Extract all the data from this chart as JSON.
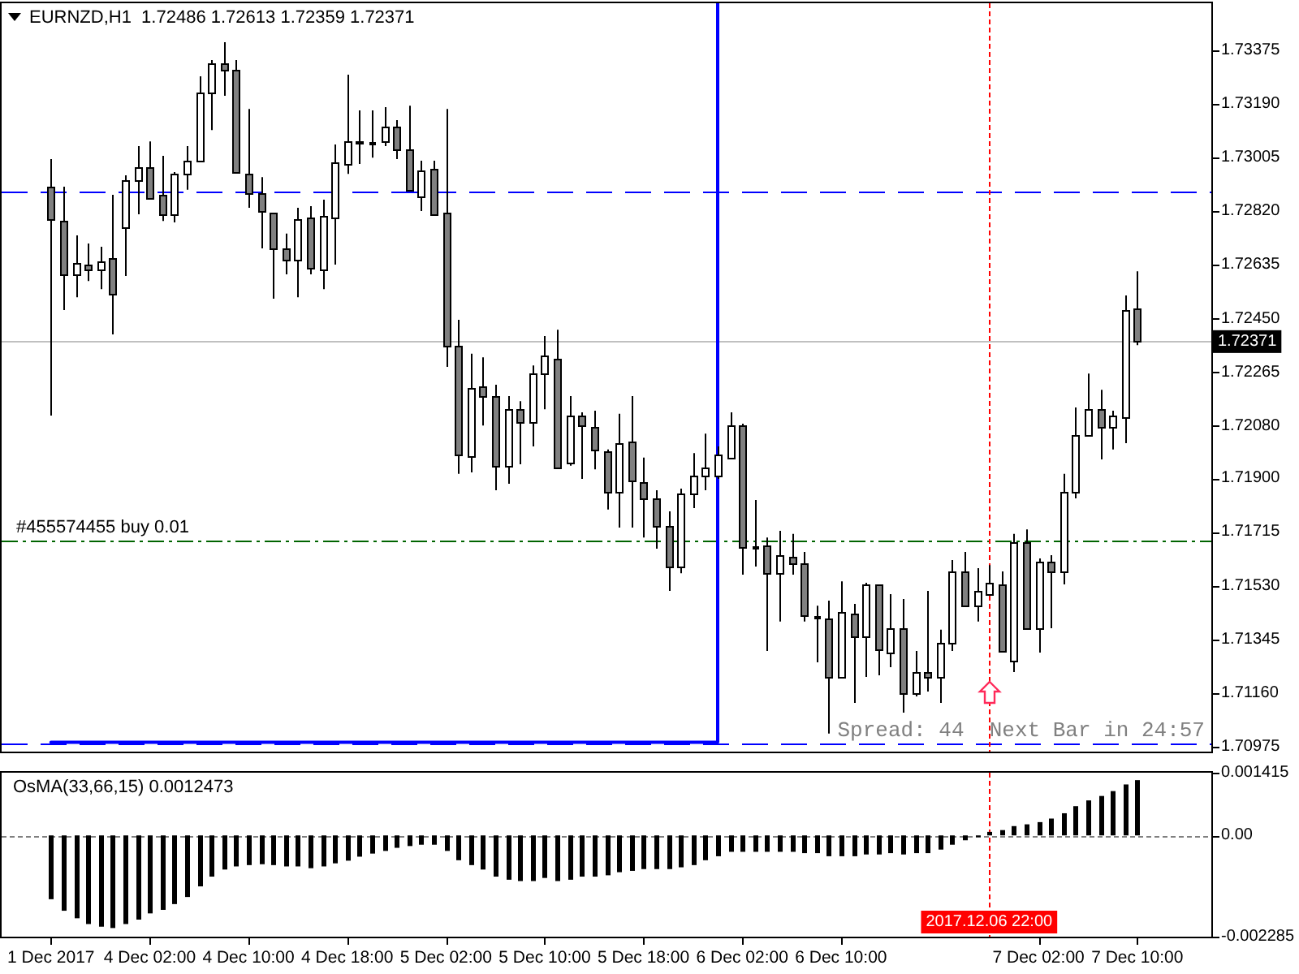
{
  "chart_data": [
    {
      "type": "candlestick",
      "title": "EURNZD,H1  1.72486 1.72613 1.72359 1.72371",
      "categories": [
        "1 Dec 2017",
        null,
        null,
        null,
        null,
        null,
        null,
        null,
        "4 Dec 02:00",
        null,
        null,
        null,
        null,
        null,
        null,
        null,
        "4 Dec 10:00",
        null,
        null,
        null,
        null,
        null,
        null,
        null,
        "4 Dec 18:00",
        null,
        null,
        null,
        null,
        null,
        null,
        null,
        "5 Dec 02:00",
        null,
        null,
        null,
        null,
        null,
        null,
        null,
        "5 Dec 10:00",
        null,
        null,
        null,
        null,
        null,
        null,
        null,
        "5 Dec 18:00",
        null,
        null,
        null,
        null,
        null,
        null,
        null,
        "6 Dec 02:00",
        null,
        null,
        null,
        null,
        null,
        null,
        null,
        "6 Dec 10:00",
        null,
        null,
        null,
        null,
        null,
        null,
        null,
        null,
        null,
        null,
        null,
        "2017.12.06 22:00",
        null,
        null,
        null,
        "7 Dec 02:00",
        null,
        null,
        null,
        null,
        null,
        null,
        null,
        "7 Dec 10:00"
      ],
      "ohlc": [
        [
          1.72905,
          1.73,
          1.72116,
          1.72793
        ],
        [
          1.72787,
          1.72905,
          1.7248,
          1.72603
        ],
        [
          1.72603,
          1.72737,
          1.72524,
          1.72642
        ],
        [
          1.72636,
          1.72709,
          1.7258,
          1.72619
        ],
        [
          1.72619,
          1.72698,
          1.72552,
          1.72647
        ],
        [
          1.72659,
          1.72877,
          1.72396,
          1.72536
        ],
        [
          1.72765,
          1.72944,
          1.72597,
          1.72927
        ],
        [
          1.72927,
          1.73045,
          1.7281,
          1.72972
        ],
        [
          1.72972,
          1.73061,
          1.72866,
          1.72866
        ],
        [
          1.72877,
          1.73011,
          1.72787,
          1.7281
        ],
        [
          1.7281,
          1.72955,
          1.72782,
          1.72949
        ],
        [
          1.72949,
          1.73045,
          1.72894,
          1.72994
        ],
        [
          1.72994,
          1.73285,
          1.72989,
          1.73229
        ],
        [
          1.73229,
          1.73341,
          1.731,
          1.7333
        ],
        [
          1.7333,
          1.73403,
          1.73218,
          1.73307
        ],
        [
          1.73307,
          1.73341,
          1.72955,
          1.72955
        ],
        [
          1.72949,
          1.73173,
          1.72832,
          1.72882
        ],
        [
          1.72882,
          1.72938,
          1.72692,
          1.72821
        ],
        [
          1.72815,
          1.72815,
          1.72519,
          1.72692
        ],
        [
          1.72692,
          1.72743,
          1.72603,
          1.72653
        ],
        [
          1.72653,
          1.72832,
          1.72524,
          1.72793
        ],
        [
          1.72798,
          1.72838,
          1.72603,
          1.72625
        ],
        [
          1.72619,
          1.7286,
          1.72552,
          1.72804
        ],
        [
          1.72798,
          1.7305,
          1.72636,
          1.72989
        ],
        [
          1.72983,
          1.73291,
          1.72949,
          1.73061
        ],
        [
          1.73056,
          1.73168,
          1.72983,
          1.73061
        ],
        [
          1.73056,
          1.73168,
          1.73005,
          1.73056
        ],
        [
          1.73061,
          1.73179,
          1.73045,
          1.73112
        ],
        [
          1.73112,
          1.73134,
          1.73,
          1.73033
        ],
        [
          1.73033,
          1.73184,
          1.72894,
          1.72894
        ],
        [
          1.72871,
          1.72994,
          1.72821,
          1.72961
        ],
        [
          1.72966,
          1.72994,
          1.7281,
          1.7281
        ],
        [
          1.72815,
          1.73173,
          1.72284,
          1.72357
        ],
        [
          1.72357,
          1.72446,
          1.71915,
          1.71982
        ],
        [
          1.71976,
          1.72329,
          1.7192,
          1.72211
        ],
        [
          1.72217,
          1.72317,
          1.72082,
          1.72183
        ],
        [
          1.72183,
          1.72222,
          1.71859,
          1.71943
        ],
        [
          1.71943,
          1.72183,
          1.71881,
          1.72138
        ],
        [
          1.72138,
          1.72166,
          1.71948,
          1.72094
        ],
        [
          1.72094,
          1.72289,
          1.7201,
          1.72261
        ],
        [
          1.72261,
          1.7239,
          1.72138,
          1.72323
        ],
        [
          1.72312,
          1.72412,
          1.71937,
          1.71937
        ],
        [
          1.71954,
          1.72183,
          1.71943,
          1.72116
        ],
        [
          1.72116,
          1.72127,
          1.71898,
          1.72082
        ],
        [
          1.72077,
          1.72133,
          1.71931,
          1.71999
        ],
        [
          1.71993,
          1.71999,
          1.71792,
          1.71853
        ],
        [
          1.71853,
          1.72122,
          1.7173,
          1.72021
        ],
        [
          1.72026,
          1.72183,
          1.7173,
          1.71892
        ],
        [
          1.71887,
          1.71971,
          1.71696,
          1.71831
        ],
        [
          1.71831,
          1.71859,
          1.71657,
          1.71736
        ],
        [
          1.71736,
          1.71786,
          1.71512,
          1.71596
        ],
        [
          1.71596,
          1.71864,
          1.71573,
          1.71847
        ],
        [
          1.71847,
          1.71987,
          1.71797,
          1.71909
        ],
        [
          1.71909,
          1.72054,
          1.71859,
          1.71937
        ],
        [
          1.71909,
          1.7201,
          1.71898,
          1.71982
        ],
        [
          1.71971,
          1.72127,
          1.71971,
          1.72082
        ],
        [
          1.72082,
          1.72088,
          1.71568,
          1.71663
        ],
        [
          1.71663,
          1.71825,
          1.71596,
          1.71663
        ],
        [
          1.71668,
          1.71696,
          1.71305,
          1.71573
        ],
        [
          1.71573,
          1.71719,
          1.71406,
          1.71635
        ],
        [
          1.71629,
          1.71708,
          1.71568,
          1.71607
        ],
        [
          1.71607,
          1.71646,
          1.71406,
          1.71428
        ],
        [
          1.71422,
          1.71461,
          1.71266,
          1.71422
        ],
        [
          1.71417,
          1.71478,
          1.7102,
          1.71215
        ],
        [
          1.71215,
          1.71545,
          1.7121,
          1.71439
        ],
        [
          1.71434,
          1.71467,
          1.71126,
          1.71355
        ],
        [
          1.71355,
          1.7154,
          1.71215,
          1.71534
        ],
        [
          1.71534,
          1.71534,
          1.71221,
          1.7131
        ],
        [
          1.71299,
          1.71501,
          1.71249,
          1.71383
        ],
        [
          1.71383,
          1.71484,
          1.71092,
          1.71159
        ],
        [
          1.71159,
          1.71305,
          1.71148,
          1.71232
        ],
        [
          1.71232,
          1.71512,
          1.71165,
          1.71215
        ],
        [
          1.71215,
          1.71378,
          1.71126,
          1.71333
        ],
        [
          1.71333,
          1.71618,
          1.71305,
          1.71579
        ],
        [
          1.71579,
          1.71646,
          1.71456,
          1.71461
        ],
        [
          1.71461,
          1.7159,
          1.71406,
          1.71512
        ],
        [
          1.71501,
          1.71601,
          1.71495,
          1.7154
        ],
        [
          1.71534,
          1.71579,
          1.71305,
          1.71305
        ],
        [
          1.71271,
          1.71708,
          1.71232,
          1.7168
        ],
        [
          1.7168,
          1.71724,
          1.71378,
          1.71383
        ],
        [
          1.71383,
          1.71624,
          1.71299,
          1.71613
        ],
        [
          1.71613,
          1.71635,
          1.71383,
          1.71579
        ],
        [
          1.71579,
          1.71915,
          1.71534,
          1.71853
        ],
        [
          1.71853,
          1.72144,
          1.71831,
          1.72049
        ],
        [
          1.72049,
          1.72261,
          1.72049,
          1.72138
        ],
        [
          1.72138,
          1.72205,
          1.71965,
          1.72077
        ],
        [
          1.72077,
          1.72133,
          1.71999,
          1.72116
        ],
        [
          1.7211,
          1.7253,
          1.72021,
          1.7248
        ],
        [
          1.72486,
          1.72613,
          1.72359,
          1.72371
        ]
      ],
      "colors": [
        "#808080",
        "#808080",
        "#ffffff",
        "#808080",
        "#ffffff",
        "#808080",
        "#ffffff",
        "#ffffff",
        "#808080",
        "#808080",
        "#ffffff",
        "#ffffff",
        "#ffffff",
        "#ffffff",
        "#808080",
        "#808080",
        "#808080",
        "#808080",
        "#808080",
        "#808080",
        "#ffffff",
        "#808080",
        "#ffffff",
        "#ffffff",
        "#ffffff",
        "#ffffff",
        "#000000",
        "#ffffff",
        "#808080",
        "#808080",
        "#ffffff",
        "#808080",
        "#808080",
        "#808080",
        "#ffffff",
        "#808080",
        "#808080",
        "#ffffff",
        "#808080",
        "#ffffff",
        "#ffffff",
        "#808080",
        "#ffffff",
        "#808080",
        "#808080",
        "#808080",
        "#ffffff",
        "#808080",
        "#808080",
        "#808080",
        "#808080",
        "#ffffff",
        "#ffffff",
        "#ffffff",
        "#ffffff",
        "#ffffff",
        "#808080",
        "#000000",
        "#808080",
        "#ffffff",
        "#808080",
        "#808080",
        "#000000",
        "#808080",
        "#ffffff",
        "#808080",
        "#ffffff",
        "#808080",
        "#ffffff",
        "#808080",
        "#ffffff",
        "#808080",
        "#ffffff",
        "#ffffff",
        "#808080",
        "#ffffff",
        "#ffffff",
        "#808080",
        "#ffffff",
        "#808080",
        "#ffffff",
        "#808080",
        "#ffffff",
        "#ffffff",
        "#ffffff",
        "#808080",
        "#ffffff",
        "#ffffff",
        "#808080"
      ],
      "ylim": [
        1.70958,
        1.73537
      ],
      "yticks": [
        1.70975,
        {
          "value": 1.7116,
          "label": "1.71160"
        },
        1.71345,
        {
          "value": 1.7153,
          "label": "1.71530"
        },
        1.71715,
        {
          "value": 1.719,
          "label": "1.71900"
        },
        {
          "value": 1.7208,
          "label": "1.72080"
        },
        1.72265,
        {
          "value": 1.7245,
          "label": "1.72450"
        },
        1.72635,
        {
          "value": 1.7282,
          "label": "1.72820"
        },
        1.73005,
        {
          "value": 1.7319,
          "label": "1.73190"
        },
        1.73375
      ],
      "tick_labels": "y",
      "series": [
        {
          "type": "line",
          "color": "#0000ff",
          "values": [
            1.7099,
            1.7099,
            1.7099,
            1.7099,
            1.7099,
            1.7099,
            1.7099,
            1.7099,
            1.7099,
            1.7099,
            1.7099,
            1.7099,
            1.7099,
            1.7099,
            1.7099,
            1.7099,
            1.7099,
            1.7099,
            1.7099,
            1.7099,
            1.7099,
            1.7099,
            1.7099,
            1.7099,
            1.7099,
            1.7099,
            1.7099,
            1.7099,
            1.7099,
            1.7099,
            1.7099,
            1.7099,
            1.7099,
            1.7099,
            1.7099,
            1.7099,
            1.7099,
            1.7099,
            1.7099,
            1.7099,
            1.7099,
            1.7099,
            1.7099,
            1.7099,
            1.7099,
            1.7099,
            1.7099,
            1.7099,
            1.7099,
            1.7099,
            1.7099,
            1.7099,
            1.7099,
            1.7099,
            1.7099,
            null,
            null,
            null,
            null,
            null,
            null,
            null,
            null,
            null,
            null,
            null,
            null,
            null,
            null,
            null,
            null,
            null,
            null,
            null,
            null,
            null,
            null,
            null,
            null,
            null,
            null,
            null,
            null,
            null,
            null,
            null,
            null,
            null,
            null
          ]
        }
      ],
      "ref_lines": [
        {
          "axis": "y",
          "value": 1.72888,
          "color": "#0000ff",
          "line_style": "dashed"
        },
        {
          "axis": "y",
          "value": 1.70985,
          "color": "#0000ff",
          "line_style": "dashed"
        },
        {
          "axis": "y",
          "value": 1.71685,
          "label": "#455574455 buy 0.01",
          "color": "#006400",
          "line_style": "dashdot"
        },
        {
          "axis": "y",
          "value": 1.72371,
          "label": "1.72371",
          "color": "#c0c0c0",
          "line_style": "solid"
        },
        {
          "axis": "x",
          "value": "2017.12.06 22:00",
          "color": "#ff0000",
          "line_style": "dotted"
        }
      ],
      "annotations": [
        "Spread: 44  Next Bar in 24:57"
      ]
    },
    {
      "type": "bar",
      "title": "OsMA(33,66,15) 0.0012473",
      "categories": [
        "1 Dec 2017",
        null,
        null,
        null,
        null,
        null,
        null,
        null,
        "4 Dec 02:00",
        null,
        null,
        null,
        null,
        null,
        null,
        null,
        "4 Dec 10:00",
        null,
        null,
        null,
        null,
        null,
        null,
        null,
        "4 Dec 18:00",
        null,
        null,
        null,
        null,
        null,
        null,
        null,
        "5 Dec 02:00",
        null,
        null,
        null,
        null,
        null,
        null,
        null,
        "5 Dec 10:00",
        null,
        null,
        null,
        null,
        null,
        null,
        null,
        "5 Dec 18:00",
        null,
        null,
        null,
        null,
        null,
        null,
        null,
        "6 Dec 02:00",
        null,
        null,
        null,
        null,
        null,
        null,
        null,
        "6 Dec 10:00",
        null,
        null,
        null,
        null,
        null,
        null,
        null,
        null,
        null,
        null,
        null,
        "2017.12.06 22:00",
        null,
        null,
        null,
        "7 Dec 02:00",
        null,
        null,
        null,
        null,
        null,
        null,
        null,
        "7 Dec 10:00"
      ],
      "values": [
        -0.00144,
        -0.0017,
        -0.00187,
        -0.002,
        -0.00206,
        -0.00209,
        -0.002,
        -0.0019,
        -0.00176,
        -0.00168,
        -0.00155,
        -0.00139,
        -0.00115,
        -0.00093,
        -0.00077,
        -0.0007,
        -0.00067,
        -0.00065,
        -0.00067,
        -0.0007,
        -0.0007,
        -0.00074,
        -0.0007,
        -0.00063,
        -0.00057,
        -0.00048,
        -0.00041,
        -0.00035,
        -0.00028,
        -0.00024,
        -0.00021,
        -0.00021,
        -0.00035,
        -0.00056,
        -0.00067,
        -0.00077,
        -0.00093,
        -0.001,
        -0.00103,
        -0.00103,
        -0.00096,
        -0.00103,
        -0.001,
        -0.00093,
        -0.00093,
        -0.0009,
        -0.00083,
        -0.0008,
        -0.00076,
        -0.00076,
        -0.00076,
        -0.00072,
        -0.00067,
        -0.00056,
        -0.00047,
        -0.00037,
        -0.00037,
        -0.00037,
        -0.00037,
        -0.00037,
        -0.00037,
        -0.0004,
        -0.0004,
        -0.00047,
        -0.00047,
        -0.00047,
        -0.00043,
        -0.00043,
        -0.0004,
        -0.00043,
        -0.0004,
        -0.0004,
        -0.00032,
        -0.00021,
        -0.00011,
        -4e-05,
        8e-05,
        0.00012,
        0.00021,
        0.00025,
        0.0003,
        0.00038,
        0.0005,
        0.00066,
        0.00079,
        0.00089,
        0.001,
        0.00115,
        0.0012473
      ],
      "color": "#000000",
      "ylim": [
        -0.002285,
        0.001415
      ],
      "yticks": [
        -0.002285,
        {
          "value": 0,
          "label": "0.00"
        },
        0.001415
      ],
      "ref_lines": [
        {
          "axis": "y",
          "value": 0,
          "color": "#808080",
          "line_style": "dotted"
        },
        {
          "axis": "x",
          "value": "2017.12.06 22:00",
          "color": "#ff0000",
          "line_style": "dotted"
        }
      ]
    }
  ]
}
